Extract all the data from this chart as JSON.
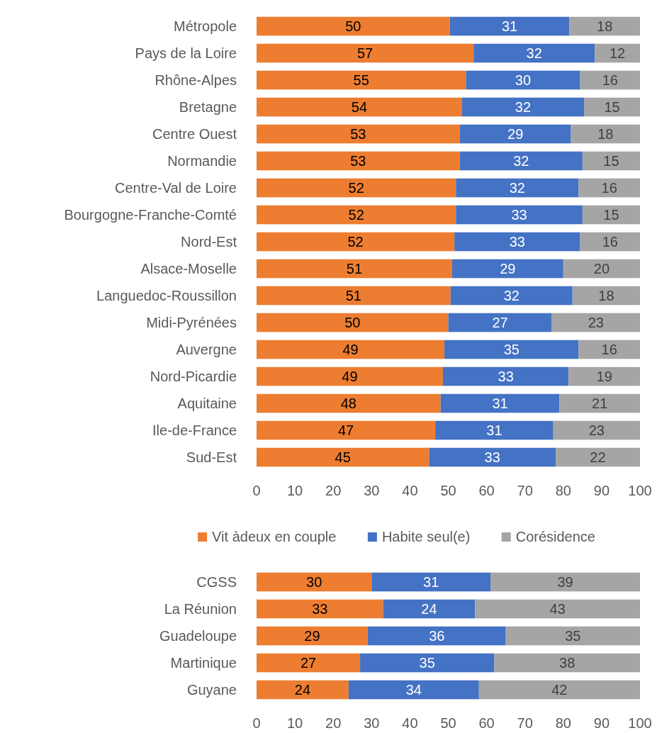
{
  "chart_data": [
    {
      "type": "bar",
      "orientation": "horizontal",
      "stacked": true,
      "legend": "bottom",
      "grid": false,
      "categories": [
        "Métropole",
        "Pays de la Loire",
        "Rhône-Alpes",
        "Bretagne",
        "Centre Ouest",
        "Normandie",
        "Centre-Val de Loire",
        "Bourgogne-Franche-Comté",
        "Nord-Est",
        "Alsace-Moselle",
        "Languedoc-Roussillon",
        "Midi-Pyrénées",
        "Auvergne",
        "Nord-Picardie",
        "Aquitaine",
        "Ile-de-France",
        "Sud-Est"
      ],
      "xlim": [
        0,
        100
      ],
      "xticks": [
        0,
        10,
        20,
        30,
        40,
        50,
        60,
        70,
        80,
        90,
        100
      ],
      "series": [
        {
          "name": "Vit àdeux en couple",
          "color": "#ed7d31",
          "values": [
            50.4,
            56.6,
            54.6,
            53.6,
            53,
            53,
            52,
            52,
            51.6,
            51,
            50.6,
            50,
            49,
            48.6,
            48,
            46.6,
            45
          ],
          "value_labels": [
            "50",
            "57",
            "55",
            "54",
            "53",
            "53",
            "52",
            "52",
            "52",
            "51",
            "51",
            "50",
            "49",
            "49",
            "48",
            "47",
            "45"
          ]
        },
        {
          "name": "Habite seul(e)",
          "color": "#4472c4",
          "values": [
            31.2,
            31.6,
            29.8,
            31.8,
            29,
            32,
            32,
            33,
            32.8,
            29,
            31.8,
            27,
            35,
            32.8,
            31,
            30.8,
            33
          ],
          "value_labels": [
            "31",
            "32",
            "30",
            "32",
            "29",
            "32",
            "32",
            "33",
            "33",
            "29",
            "32",
            "27",
            "35",
            "33",
            "31",
            "31",
            "33"
          ]
        },
        {
          "name": "Corésidence",
          "color": "#a5a5a5",
          "values": [
            18.4,
            11.8,
            15.6,
            14.6,
            18,
            15,
            16,
            15,
            15.6,
            20,
            17.6,
            23,
            16,
            18.6,
            21,
            22.6,
            22
          ],
          "value_labels": [
            "18",
            "12",
            "16",
            "15",
            "18",
            "15",
            "16",
            "15",
            "16",
            "20",
            "18",
            "23",
            "16",
            "19",
            "21",
            "23",
            "22"
          ]
        }
      ]
    },
    {
      "type": "bar",
      "orientation": "horizontal",
      "stacked": true,
      "data_labels": true,
      "grid": false,
      "categories": [
        "CGSS",
        "La Réunion",
        "Guadeloupe",
        "Martinique",
        "Guyane"
      ],
      "xlim": [
        0,
        100
      ],
      "xticks": [
        0,
        10,
        20,
        30,
        40,
        50,
        60,
        70,
        80,
        90,
        100
      ],
      "series": [
        {
          "color": "#ed7d31",
          "values": [
            30,
            33,
            29,
            27,
            24
          ]
        },
        {
          "color": "#4472c4",
          "values": [
            31,
            24,
            36,
            35,
            34
          ]
        },
        {
          "color": "#a5a5a5",
          "values": [
            39,
            43,
            35,
            38,
            42
          ]
        }
      ]
    }
  ]
}
